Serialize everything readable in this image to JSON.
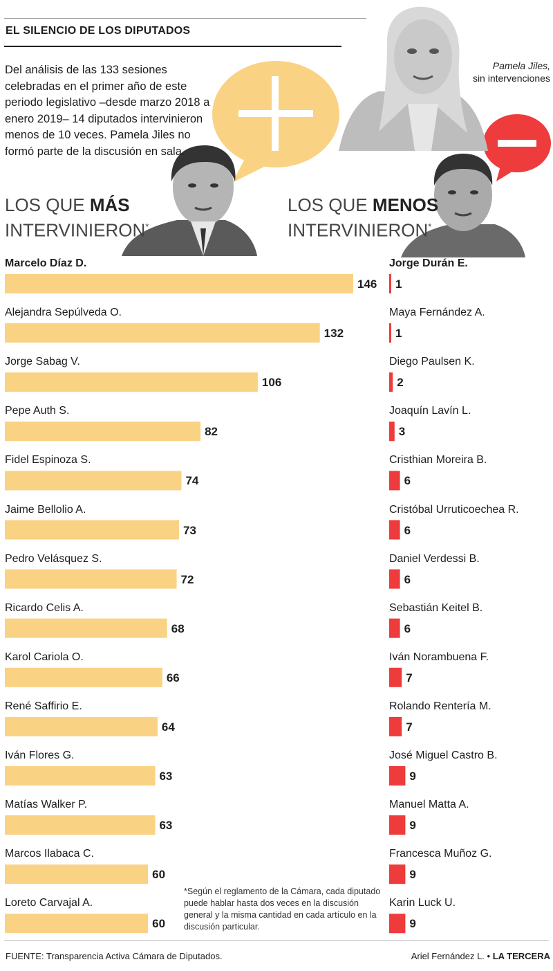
{
  "title": "EL SILENCIO DE LOS DIPUTADOS",
  "intro": "Del análisis de las 133 sesiones celebradas en el primer año de este periodo legislativo –desde marzo 2018 a enero 2019– 14 diputados intervinieron menos de 10 veces. Pamela Jiles no formó parte de la discusión en sala.",
  "photo_label": {
    "name": "Pamela Jiles,",
    "note": "sin intervenciones"
  },
  "left_heading": {
    "prefix": "LOS QUE ",
    "emph": "MÁS",
    "line2": "INTERVINIERON",
    "mark": "*"
  },
  "right_heading": {
    "prefix": "LOS QUE ",
    "emph": "MENOS",
    "line2": "INTERVINIERON",
    "mark": "*"
  },
  "footnote": "*Según el reglamento de la Cámara, cada diputado puede hablar hasta dos veces en la discusión general y la misma cantidad en cada artículo en la discusión particular.",
  "source": "FUENTE: Transparencia Activa Cámara de Diputados.",
  "credit": {
    "author": "Ariel Fernández L. •",
    "outlet": "LA TERCERA"
  },
  "colors": {
    "most_bar": "#fad284",
    "least_bar": "#ee3b3b",
    "plus_bubble": "#fad284",
    "minus_bubble": "#ee3b3b"
  },
  "icons": [
    "plus-bubble-icon",
    "minus-bubble-icon",
    "portrait-man-left",
    "portrait-man-right",
    "portrait-woman"
  ],
  "chart_data": [
    {
      "type": "bar",
      "title": "LOS QUE MÁS INTERVINIERON*",
      "categories": [
        "Marcelo Díaz D.",
        "Alejandra Sepúlveda O.",
        "Jorge Sabag V.",
        "Pepe Auth S.",
        "Fidel Espinoza S.",
        "Jaime Bellolio A.",
        "Pedro Velásquez S.",
        "Ricardo Celis A.",
        "Karol Cariola O.",
        "René Saffirio E.",
        "Iván Flores G.",
        "Matías Walker P.",
        "Marcos Ilabaca C.",
        "Loreto Carvajal A."
      ],
      "values": [
        146,
        132,
        106,
        82,
        74,
        73,
        72,
        68,
        66,
        64,
        63,
        63,
        60,
        60
      ]
    },
    {
      "type": "bar",
      "title": "LOS QUE MENOS INTERVINIERON*",
      "categories": [
        "Jorge Durán E.",
        "Maya Fernández A.",
        "Diego Paulsen K.",
        "Joaquín Lavín L.",
        "Cristhian Moreira B.",
        "Cristóbal Urruticoechea R.",
        "Daniel Verdessi B.",
        "Sebastián Keitel B.",
        "Iván Norambuena F.",
        "Rolando Rentería M.",
        "José Miguel Castro B.",
        "Manuel Matta A.",
        "Francesca Muñoz G.",
        "Karin Luck U."
      ],
      "values": [
        1,
        1,
        2,
        3,
        6,
        6,
        6,
        6,
        7,
        7,
        9,
        9,
        9,
        9
      ]
    }
  ]
}
